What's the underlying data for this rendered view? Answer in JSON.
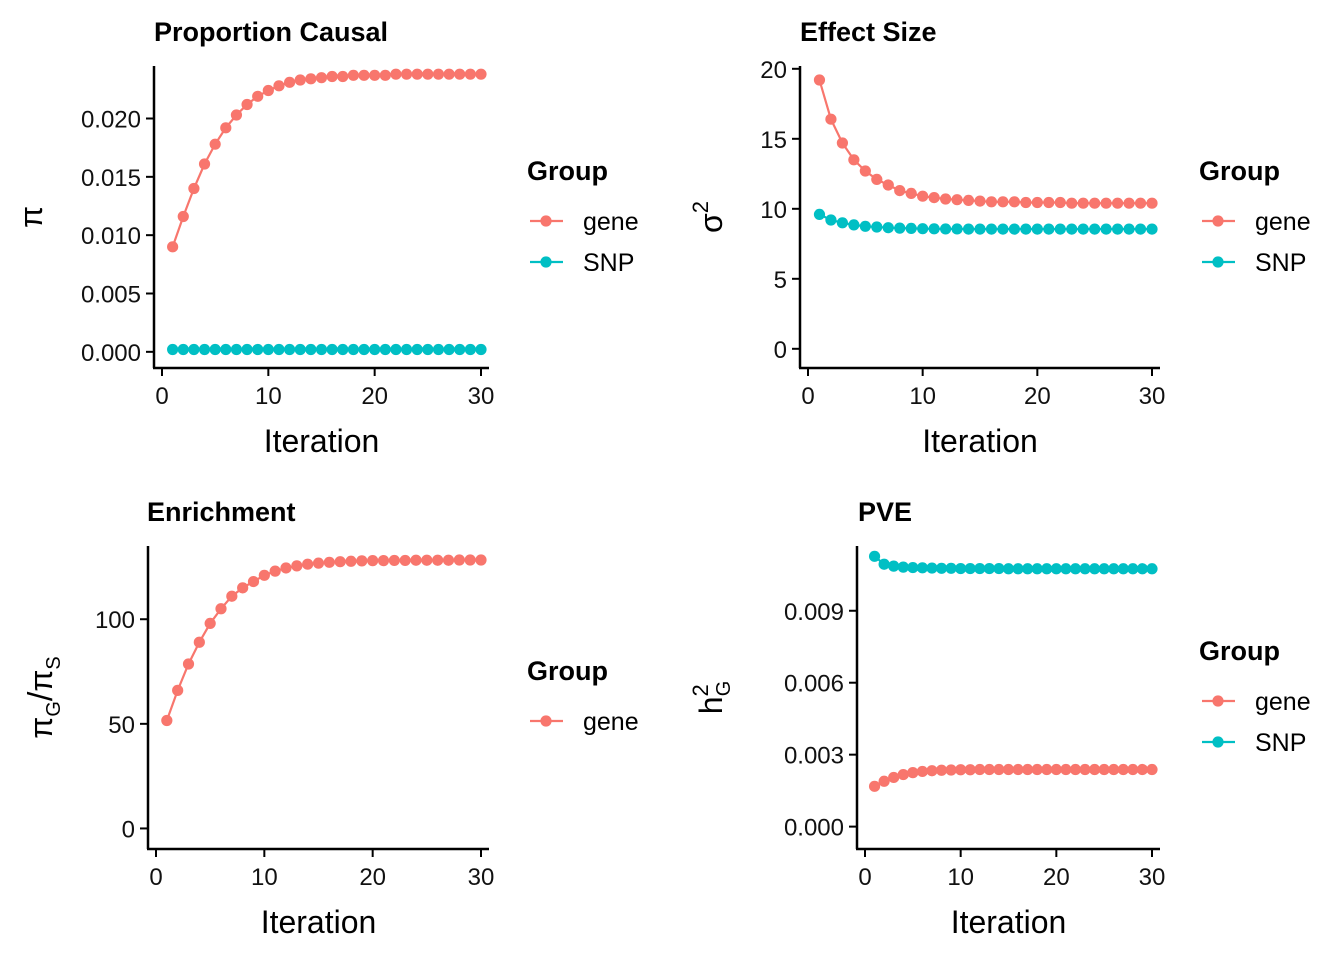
{
  "colors": {
    "gene": "#F8766D",
    "SNP": "#00BFC4",
    "axis": "#000000"
  },
  "chart_data": [
    {
      "id": "proportion-causal",
      "type": "line",
      "title": "Proportion Causal",
      "xlabel": "Iteration",
      "ylabel": "π",
      "ylabel_parts": {
        "main": "π",
        "sup": "",
        "sub": ""
      },
      "xlim": [
        0,
        30
      ],
      "ylim": [
        -0.0007,
        0.0245
      ],
      "xticks": [
        0,
        10,
        20,
        30
      ],
      "xtick_labels": [
        "0",
        "10",
        "20",
        "30"
      ],
      "yticks": [
        0,
        0.005,
        0.01,
        0.015,
        0.02
      ],
      "ytick_labels": [
        "0.000",
        "0.005",
        "0.010",
        "0.015",
        "0.020"
      ],
      "grid": false,
      "legend": {
        "title": "Group",
        "position": "right",
        "entries": [
          "gene",
          "SNP"
        ]
      },
      "x": [
        1,
        2,
        3,
        4,
        5,
        6,
        7,
        8,
        9,
        10,
        11,
        12,
        13,
        14,
        15,
        16,
        17,
        18,
        19,
        20,
        21,
        22,
        23,
        24,
        25,
        26,
        27,
        28,
        29,
        30
      ],
      "series": [
        {
          "name": "gene",
          "values": [
            0.009,
            0.0116,
            0.014,
            0.0161,
            0.0178,
            0.0192,
            0.0203,
            0.0212,
            0.0219,
            0.0224,
            0.0228,
            0.0231,
            0.0233,
            0.0234,
            0.0235,
            0.0236,
            0.0236,
            0.0237,
            0.0237,
            0.0237,
            0.0237,
            0.0238,
            0.0238,
            0.0238,
            0.0238,
            0.0238,
            0.0238,
            0.0238,
            0.0238,
            0.0238
          ]
        },
        {
          "name": "SNP",
          "values": [
            0.0002,
            0.0002,
            0.0002,
            0.0002,
            0.0002,
            0.0002,
            0.0002,
            0.0002,
            0.0002,
            0.0002,
            0.0002,
            0.0002,
            0.0002,
            0.0002,
            0.0002,
            0.0002,
            0.0002,
            0.0002,
            0.0002,
            0.0002,
            0.0002,
            0.0002,
            0.0002,
            0.0002,
            0.0002,
            0.0002,
            0.0002,
            0.0002,
            0.0002,
            0.0002
          ]
        }
      ]
    },
    {
      "id": "effect-size",
      "type": "line",
      "title": "Effect Size",
      "xlabel": "Iteration",
      "ylabel": "σ²",
      "ylabel_parts": {
        "main": "σ",
        "sup": "2",
        "sub": ""
      },
      "xlim": [
        0,
        30
      ],
      "ylim": [
        -0.8,
        20.2
      ],
      "xticks": [
        0,
        10,
        20,
        30
      ],
      "xtick_labels": [
        "0",
        "10",
        "20",
        "30"
      ],
      "yticks": [
        0,
        5,
        10,
        15,
        20
      ],
      "ytick_labels": [
        "0",
        "5",
        "10",
        "15",
        "20"
      ],
      "grid": false,
      "legend": {
        "title": "Group",
        "position": "right",
        "entries": [
          "gene",
          "SNP"
        ]
      },
      "x": [
        1,
        2,
        3,
        4,
        5,
        6,
        7,
        8,
        9,
        10,
        11,
        12,
        13,
        14,
        15,
        16,
        17,
        18,
        19,
        20,
        21,
        22,
        23,
        24,
        25,
        26,
        27,
        28,
        29,
        30
      ],
      "series": [
        {
          "name": "gene",
          "values": [
            19.2,
            16.4,
            14.7,
            13.5,
            12.7,
            12.1,
            11.7,
            11.3,
            11.1,
            10.9,
            10.8,
            10.7,
            10.65,
            10.6,
            10.55,
            10.5,
            10.5,
            10.5,
            10.45,
            10.45,
            10.45,
            10.45,
            10.4,
            10.4,
            10.4,
            10.4,
            10.4,
            10.4,
            10.4,
            10.4
          ]
        },
        {
          "name": "SNP",
          "values": [
            9.6,
            9.2,
            9.0,
            8.85,
            8.75,
            8.7,
            8.65,
            8.62,
            8.6,
            8.58,
            8.57,
            8.56,
            8.56,
            8.55,
            8.55,
            8.55,
            8.55,
            8.55,
            8.55,
            8.55,
            8.55,
            8.55,
            8.55,
            8.55,
            8.55,
            8.55,
            8.55,
            8.55,
            8.55,
            8.55
          ]
        }
      ]
    },
    {
      "id": "enrichment",
      "type": "line",
      "title": "Enrichment",
      "xlabel": "Iteration",
      "ylabel": "πG/πS",
      "ylabel_parts": {
        "main": "π",
        "sub": "G",
        "sep": "/",
        "main2": "π",
        "sub2": "S"
      },
      "xlim": [
        0,
        30
      ],
      "ylim": [
        -6,
        135
      ],
      "xticks": [
        0,
        10,
        20,
        30
      ],
      "xtick_labels": [
        "0",
        "10",
        "20",
        "30"
      ],
      "yticks": [
        0,
        50,
        100
      ],
      "ytick_labels": [
        "0",
        "50",
        "100"
      ],
      "grid": false,
      "legend": {
        "title": "Group",
        "position": "right",
        "entries": [
          "gene"
        ]
      },
      "x": [
        1,
        2,
        3,
        4,
        5,
        6,
        7,
        8,
        9,
        10,
        11,
        12,
        13,
        14,
        15,
        16,
        17,
        18,
        19,
        20,
        21,
        22,
        23,
        24,
        25,
        26,
        27,
        28,
        29,
        30
      ],
      "series": [
        {
          "name": "gene",
          "values": [
            51.6,
            66,
            78.6,
            89,
            98,
            105,
            111,
            115,
            118,
            121,
            123,
            124.5,
            125.5,
            126.3,
            126.8,
            127.2,
            127.5,
            127.7,
            127.9,
            128,
            128,
            128.1,
            128.1,
            128.2,
            128.2,
            128.2,
            128.2,
            128.3,
            128.3,
            128.3
          ]
        }
      ]
    },
    {
      "id": "pve",
      "type": "line",
      "title": "PVE",
      "xlabel": "Iteration",
      "ylabel": "h²G",
      "ylabel_parts": {
        "main": "h",
        "sup": "2",
        "sub": "G"
      },
      "xlim": [
        0,
        30
      ],
      "ylim": [
        -0.0006,
        0.0117
      ],
      "xticks": [
        0,
        10,
        20,
        30
      ],
      "xtick_labels": [
        "0",
        "10",
        "20",
        "30"
      ],
      "yticks": [
        0,
        0.003,
        0.006,
        0.009
      ],
      "ytick_labels": [
        "0.000",
        "0.003",
        "0.006",
        "0.009"
      ],
      "grid": false,
      "legend": {
        "title": "Group",
        "position": "right",
        "entries": [
          "gene",
          "SNP"
        ]
      },
      "x": [
        1,
        2,
        3,
        4,
        5,
        6,
        7,
        8,
        9,
        10,
        11,
        12,
        13,
        14,
        15,
        16,
        17,
        18,
        19,
        20,
        21,
        22,
        23,
        24,
        25,
        26,
        27,
        28,
        29,
        30
      ],
      "series": [
        {
          "name": "gene",
          "values": [
            0.00168,
            0.00189,
            0.00205,
            0.00217,
            0.00225,
            0.0023,
            0.00233,
            0.00235,
            0.00236,
            0.00237,
            0.00237,
            0.00238,
            0.00238,
            0.00238,
            0.00238,
            0.00238,
            0.00238,
            0.00238,
            0.00238,
            0.00238,
            0.00238,
            0.00238,
            0.00238,
            0.00238,
            0.00238,
            0.00238,
            0.00238,
            0.00238,
            0.00238,
            0.00238
          ]
        },
        {
          "name": "SNP",
          "values": [
            0.01127,
            0.01094,
            0.01086,
            0.01082,
            0.0108,
            0.01079,
            0.01078,
            0.01077,
            0.01077,
            0.01076,
            0.01076,
            0.01076,
            0.01076,
            0.01076,
            0.01075,
            0.01075,
            0.01075,
            0.01075,
            0.01075,
            0.01075,
            0.01075,
            0.01075,
            0.01075,
            0.01075,
            0.01075,
            0.01075,
            0.01075,
            0.01075,
            0.01075,
            0.01075
          ]
        }
      ]
    }
  ]
}
